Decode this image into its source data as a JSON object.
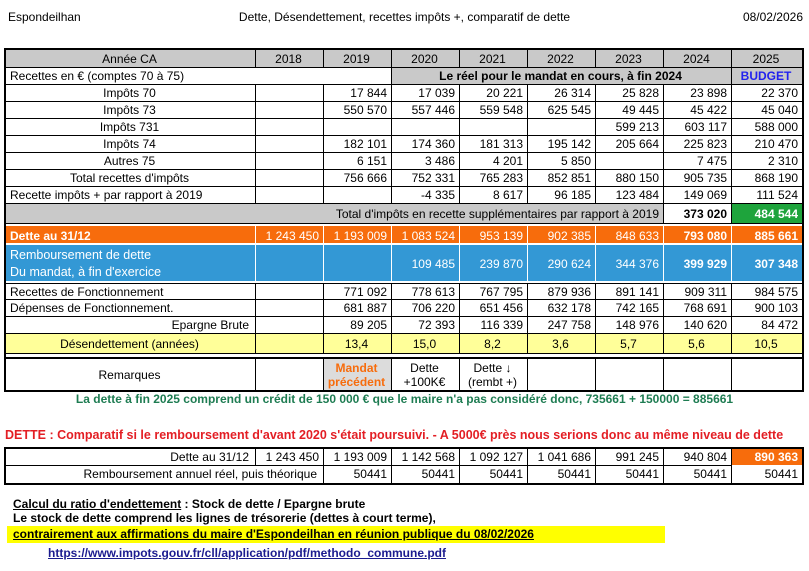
{
  "header": {
    "commune": "Espondeilhan",
    "title": "Dette, Désendettement, recettes impôts +, comparatif de dette",
    "date": "08/02/2026"
  },
  "colors": {
    "orange": "#F76C0C",
    "blue_row": "#3398D5",
    "green_cell": "#1EA43C",
    "yellow_row": "#FFFF99",
    "header_gray": "#C9C9C9",
    "remark_gray": "#DCDCDC",
    "budget_blue": "#2222EE",
    "green_note_text": "#1E7C52",
    "red_text": "#E31E24",
    "link_blue": "#1B1B8F",
    "highlight_yellow": "#FFFF00"
  },
  "table1": {
    "year_header": {
      "label": "Année CA",
      "values": [
        "2018",
        "2019",
        "2020",
        "2021",
        "2022",
        "2023",
        "2024",
        "2025"
      ]
    },
    "recettes_row": {
      "label": "Recettes en € (comptes 70 à 75)",
      "mandat_note": "Le réel pour le mandat en cours, à fin 2024",
      "budget": "BUDGET"
    },
    "rows": {
      "impots70": {
        "label": "Impôts 70",
        "values": [
          "",
          "17 844",
          "17 039",
          "20 221",
          "26 314",
          "25 828",
          "23 898",
          "22 370"
        ]
      },
      "impots73": {
        "label": "Impôts 73",
        "values": [
          "",
          "550 570",
          "557 446",
          "559 548",
          "625 545",
          "49 445",
          "45 422",
          "45 040"
        ]
      },
      "impots731": {
        "label": "Impôts 731",
        "values": [
          "",
          "",
          "",
          "",
          "",
          "599 213",
          "603 117",
          "588 000"
        ]
      },
      "impots74": {
        "label": "Impôts 74",
        "values": [
          "",
          "182 101",
          "174 360",
          "181 313",
          "195 142",
          "205 664",
          "225 823",
          "210 470"
        ]
      },
      "autres75": {
        "label": "Autres 75",
        "values": [
          "",
          "6 151",
          "3 486",
          "4 201",
          "5 850",
          "",
          "7 475",
          "2 310"
        ]
      },
      "total_impots": {
        "label": "Total recettes d'impôts",
        "values": [
          "",
          "756 666",
          "752 331",
          "765 283",
          "852 851",
          "880 150",
          "905 735",
          "868 190"
        ]
      },
      "recette_plus": {
        "label": "Recette impôts + par rapport à 2019",
        "values": [
          "",
          "",
          "-4 335",
          "8 617",
          "96 185",
          "123 484",
          "149 069",
          "111 524"
        ]
      },
      "dette": {
        "label": "Dette au 31/12",
        "values": [
          "1 243 450",
          "1 193 009",
          "1 083 524",
          "953 139",
          "902 385",
          "848 633",
          "793 080",
          "885 661"
        ]
      },
      "remboursement": {
        "label": "Remboursement de dette\nDu mandat, à fin d'exercice",
        "values": [
          "",
          "",
          "109 485",
          "239 870",
          "290 624",
          "344 376",
          "399 929",
          "307 348"
        ]
      },
      "rec_fonc": {
        "label": "Recettes de Fonctionnement",
        "values": [
          "",
          "771 092",
          "778 613",
          "767 795",
          "879 936",
          "891 141",
          "909 311",
          "984 575"
        ]
      },
      "dep_fonc": {
        "label": "Dépenses de Fonctionnement.",
        "values": [
          "",
          "681 887",
          "706 220",
          "651 456",
          "632 178",
          "742 165",
          "768 691",
          "900 103"
        ]
      },
      "epargne": {
        "label": "Epargne Brute",
        "values": [
          "",
          "89 205",
          "72 393",
          "116 339",
          "247 758",
          "148 976",
          "140 620",
          "84 472"
        ]
      },
      "desendettement": {
        "label": "Désendettement (années)",
        "values": [
          "",
          "13,4",
          "15,0",
          "8,2",
          "3,6",
          "5,7",
          "5,6",
          "10,5"
        ]
      },
      "remarques": {
        "label": "Remarques",
        "values": [
          "",
          "Mandat précédent",
          "Dette +100K€",
          "Dette ↓ (rembt +)",
          "",
          "",
          "",
          ""
        ]
      }
    },
    "total_band": {
      "label": "Total  d'impôts en recette supplémentaires par rapport à 2019",
      "v2024": "373 020",
      "v2025": "484 544"
    }
  },
  "green_note": "La dette à fin 2025 comprend un crédit de 150 000 € que le maire n'a pas considéré donc, 735661 + 150000 = 885661",
  "red_heading": "DETTE : Comparatif si le remboursement d'avant 2020 s'était poursuivi. - A 5000€ près nous serions donc au même niveau de dette",
  "table2": {
    "dette": {
      "label": "Dette au 31/12",
      "values": [
        "1 243 450",
        "1 193 009",
        "1 142 568",
        "1 092 127",
        "1 041 686",
        "991 245",
        "940 804",
        "890 363"
      ]
    },
    "remboursement": {
      "label": "Remboursement annuel réel, puis théorique",
      "values": [
        "50441",
        "50441",
        "50441",
        "50441",
        "50441",
        "50441",
        "50441"
      ]
    }
  },
  "footer": {
    "ratio_label": "Calcul du ratio d'endettement",
    "ratio_rest": " : Stock de dette / Epargne brute",
    "stock_line": "Le stock de dette comprend les lignes de trésorerie (dettes à court terme),",
    "highlight_line": "contrairement aux affirmations du maire d'Espondeilhan en réunion publique du 08/02/2026",
    "link": "https://www.impots.gouv.fr/cll/application/pdf/methodo_commune.pdf"
  }
}
